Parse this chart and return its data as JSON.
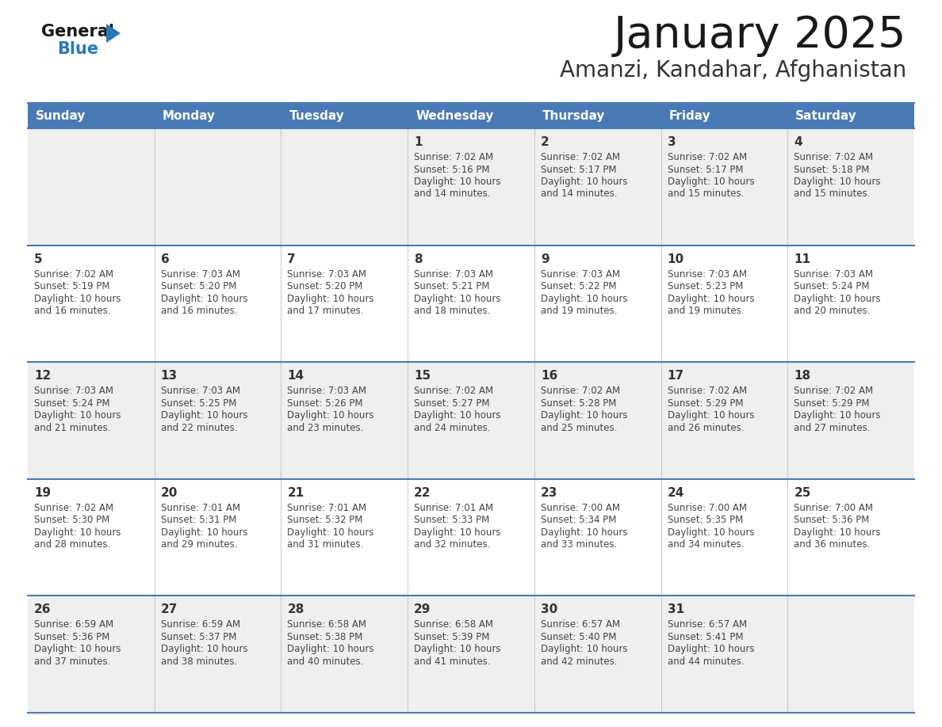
{
  "title": "January 2025",
  "subtitle": "Amanzi, Kandahar, Afghanistan",
  "days_of_week": [
    "Sunday",
    "Monday",
    "Tuesday",
    "Wednesday",
    "Thursday",
    "Friday",
    "Saturday"
  ],
  "header_bg": "#4a7ab5",
  "header_text": "#ffffff",
  "row_bg_odd": "#efefef",
  "row_bg_even": "#ffffff",
  "border_color": "#4a7ab5",
  "grid_color": "#c0c0c0",
  "day_num_color": "#333333",
  "info_color": "#444444",
  "title_color": "#1a1a1a",
  "subtitle_color": "#333333",
  "logo_text_color": "#1a1a1a",
  "logo_blue_color": "#2878b8",
  "calendar": [
    [
      {
        "day": null,
        "sunrise": null,
        "sunset": null,
        "daylight": null
      },
      {
        "day": null,
        "sunrise": null,
        "sunset": null,
        "daylight": null
      },
      {
        "day": null,
        "sunrise": null,
        "sunset": null,
        "daylight": null
      },
      {
        "day": 1,
        "sunrise": "7:02 AM",
        "sunset": "5:16 PM",
        "daylight": "10 hours\nand 14 minutes."
      },
      {
        "day": 2,
        "sunrise": "7:02 AM",
        "sunset": "5:17 PM",
        "daylight": "10 hours\nand 14 minutes."
      },
      {
        "day": 3,
        "sunrise": "7:02 AM",
        "sunset": "5:17 PM",
        "daylight": "10 hours\nand 15 minutes."
      },
      {
        "day": 4,
        "sunrise": "7:02 AM",
        "sunset": "5:18 PM",
        "daylight": "10 hours\nand 15 minutes."
      }
    ],
    [
      {
        "day": 5,
        "sunrise": "7:02 AM",
        "sunset": "5:19 PM",
        "daylight": "10 hours\nand 16 minutes."
      },
      {
        "day": 6,
        "sunrise": "7:03 AM",
        "sunset": "5:20 PM",
        "daylight": "10 hours\nand 16 minutes."
      },
      {
        "day": 7,
        "sunrise": "7:03 AM",
        "sunset": "5:20 PM",
        "daylight": "10 hours\nand 17 minutes."
      },
      {
        "day": 8,
        "sunrise": "7:03 AM",
        "sunset": "5:21 PM",
        "daylight": "10 hours\nand 18 minutes."
      },
      {
        "day": 9,
        "sunrise": "7:03 AM",
        "sunset": "5:22 PM",
        "daylight": "10 hours\nand 19 minutes."
      },
      {
        "day": 10,
        "sunrise": "7:03 AM",
        "sunset": "5:23 PM",
        "daylight": "10 hours\nand 19 minutes."
      },
      {
        "day": 11,
        "sunrise": "7:03 AM",
        "sunset": "5:24 PM",
        "daylight": "10 hours\nand 20 minutes."
      }
    ],
    [
      {
        "day": 12,
        "sunrise": "7:03 AM",
        "sunset": "5:24 PM",
        "daylight": "10 hours\nand 21 minutes."
      },
      {
        "day": 13,
        "sunrise": "7:03 AM",
        "sunset": "5:25 PM",
        "daylight": "10 hours\nand 22 minutes."
      },
      {
        "day": 14,
        "sunrise": "7:03 AM",
        "sunset": "5:26 PM",
        "daylight": "10 hours\nand 23 minutes."
      },
      {
        "day": 15,
        "sunrise": "7:02 AM",
        "sunset": "5:27 PM",
        "daylight": "10 hours\nand 24 minutes."
      },
      {
        "day": 16,
        "sunrise": "7:02 AM",
        "sunset": "5:28 PM",
        "daylight": "10 hours\nand 25 minutes."
      },
      {
        "day": 17,
        "sunrise": "7:02 AM",
        "sunset": "5:29 PM",
        "daylight": "10 hours\nand 26 minutes."
      },
      {
        "day": 18,
        "sunrise": "7:02 AM",
        "sunset": "5:29 PM",
        "daylight": "10 hours\nand 27 minutes."
      }
    ],
    [
      {
        "day": 19,
        "sunrise": "7:02 AM",
        "sunset": "5:30 PM",
        "daylight": "10 hours\nand 28 minutes."
      },
      {
        "day": 20,
        "sunrise": "7:01 AM",
        "sunset": "5:31 PM",
        "daylight": "10 hours\nand 29 minutes."
      },
      {
        "day": 21,
        "sunrise": "7:01 AM",
        "sunset": "5:32 PM",
        "daylight": "10 hours\nand 31 minutes."
      },
      {
        "day": 22,
        "sunrise": "7:01 AM",
        "sunset": "5:33 PM",
        "daylight": "10 hours\nand 32 minutes."
      },
      {
        "day": 23,
        "sunrise": "7:00 AM",
        "sunset": "5:34 PM",
        "daylight": "10 hours\nand 33 minutes."
      },
      {
        "day": 24,
        "sunrise": "7:00 AM",
        "sunset": "5:35 PM",
        "daylight": "10 hours\nand 34 minutes."
      },
      {
        "day": 25,
        "sunrise": "7:00 AM",
        "sunset": "5:36 PM",
        "daylight": "10 hours\nand 36 minutes."
      }
    ],
    [
      {
        "day": 26,
        "sunrise": "6:59 AM",
        "sunset": "5:36 PM",
        "daylight": "10 hours\nand 37 minutes."
      },
      {
        "day": 27,
        "sunrise": "6:59 AM",
        "sunset": "5:37 PM",
        "daylight": "10 hours\nand 38 minutes."
      },
      {
        "day": 28,
        "sunrise": "6:58 AM",
        "sunset": "5:38 PM",
        "daylight": "10 hours\nand 40 minutes."
      },
      {
        "day": 29,
        "sunrise": "6:58 AM",
        "sunset": "5:39 PM",
        "daylight": "10 hours\nand 41 minutes."
      },
      {
        "day": 30,
        "sunrise": "6:57 AM",
        "sunset": "5:40 PM",
        "daylight": "10 hours\nand 42 minutes."
      },
      {
        "day": 31,
        "sunrise": "6:57 AM",
        "sunset": "5:41 PM",
        "daylight": "10 hours\nand 44 minutes."
      },
      {
        "day": null,
        "sunrise": null,
        "sunset": null,
        "daylight": null
      }
    ]
  ],
  "figsize": [
    11.88,
    9.18
  ],
  "dpi": 100
}
